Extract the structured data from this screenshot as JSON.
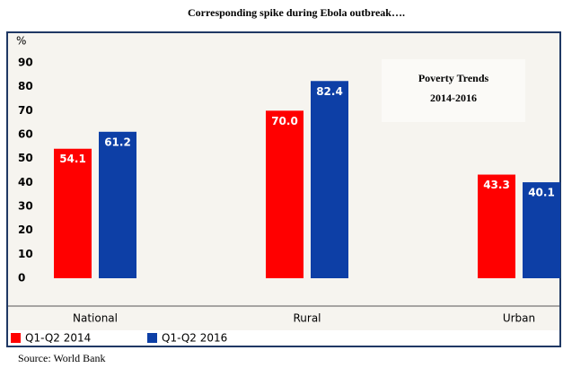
{
  "chart_data": {
    "type": "bar",
    "title": "Corresponding spike during Ebola outbreak….",
    "y_label": "%",
    "annotation": [
      "Poverty Trends",
      "2014-2016"
    ],
    "categories": [
      "National",
      "Rural",
      "Urban"
    ],
    "series": [
      {
        "name": "Q1-Q2 2014",
        "color": "#ff0000",
        "values": [
          54.1,
          70.0,
          43.3
        ],
        "value_labels": [
          "54.1",
          "70.0",
          "43.3"
        ]
      },
      {
        "name": "Q1-Q2 2016",
        "color": "#0d3fa6",
        "values": [
          61.2,
          82.4,
          40.1
        ]
      }
    ],
    "ylim": [
      0,
      90
    ],
    "yticks": [
      0,
      10,
      20,
      30,
      40,
      50,
      60,
      70,
      80,
      90
    ],
    "source": "Source: World Bank"
  }
}
